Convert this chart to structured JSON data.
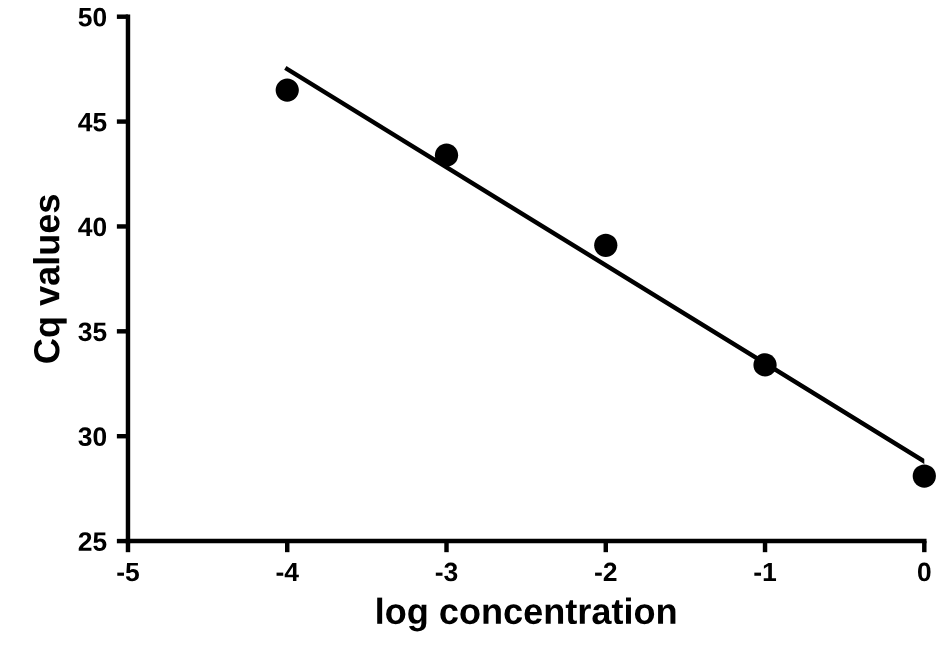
{
  "chart_data": {
    "type": "scatter",
    "xlabel": "log concentration",
    "ylabel": "Cq values",
    "series": [
      {
        "color": "#000000",
        "x": [
          -4,
          -3,
          -2,
          -1,
          0
        ],
        "values": [
          46.5,
          43.4,
          39.1,
          33.4,
          28.1
        ],
        "marker": "circle"
      },
      {
        "type": "line",
        "color": "#000000",
        "x": [
          -4,
          0
        ],
        "values": [
          47.5,
          28.8
        ],
        "line_style": "solid"
      }
    ],
    "xlim": [
      -5,
      0
    ],
    "ylim": [
      25,
      50
    ],
    "xticks": [
      {
        "value": -5,
        "label": "-5"
      },
      {
        "value": -4,
        "label": "-4"
      },
      {
        "value": -3,
        "label": "-3"
      },
      {
        "value": -2,
        "label": "-2"
      },
      {
        "value": -1,
        "label": "-1"
      },
      0
    ],
    "yticks": [
      25,
      30,
      35,
      40,
      45,
      50
    ],
    "grid": false,
    "legend": false
  }
}
